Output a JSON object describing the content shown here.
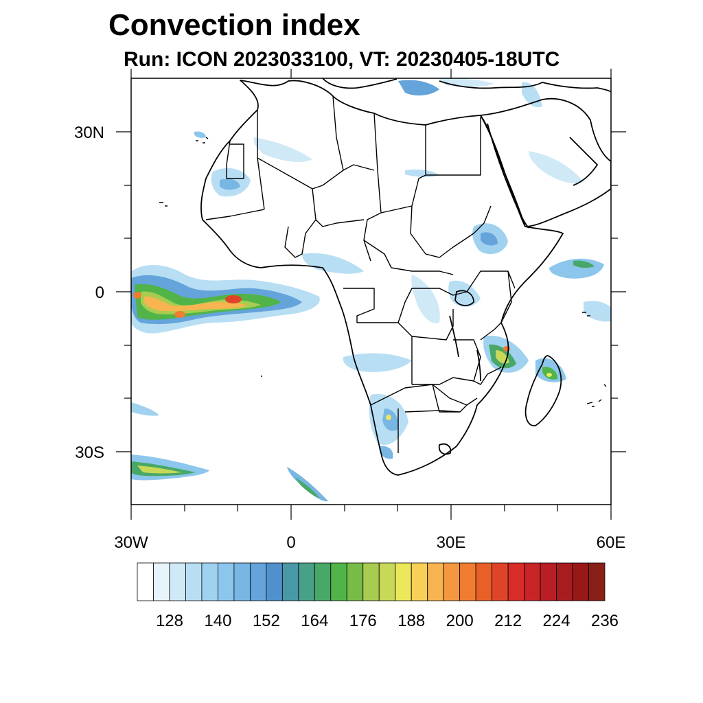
{
  "title": "Convection index",
  "subtitle": "Run: ICON 2023033100,  VT: 20230405-18UTC",
  "map": {
    "region": "Africa",
    "lon_range": [
      -30,
      60
    ],
    "lat_range": [
      -40,
      40
    ],
    "lon_ticks": [
      {
        "value": -30,
        "label": "30W"
      },
      {
        "value": 0,
        "label": "0"
      },
      {
        "value": 30,
        "label": "30E"
      },
      {
        "value": 60,
        "label": "60E"
      }
    ],
    "lat_ticks": [
      {
        "value": 30,
        "label": "30N"
      },
      {
        "value": 0,
        "label": "0"
      },
      {
        "value": -30,
        "label": "30S"
      }
    ]
  },
  "colorbar": {
    "label_values": [
      "128",
      "140",
      "152",
      "164",
      "176",
      "188",
      "200",
      "212",
      "224",
      "236"
    ],
    "colors": [
      "#ffffff",
      "#e8f4fb",
      "#d0e9f7",
      "#b8def4",
      "#a0d2f0",
      "#8cc6ec",
      "#78b6e4",
      "#64a4da",
      "#5090cc",
      "#4898a8",
      "#48a088",
      "#48a868",
      "#50b448",
      "#78bc48",
      "#a8cc50",
      "#c8d858",
      "#ece85c",
      "#f8d058",
      "#f8b450",
      "#f49840",
      "#f07c30",
      "#e86028",
      "#e04428",
      "#d82c28",
      "#c82428",
      "#b81e24",
      "#a81c20",
      "#981818",
      "#882018"
    ]
  }
}
